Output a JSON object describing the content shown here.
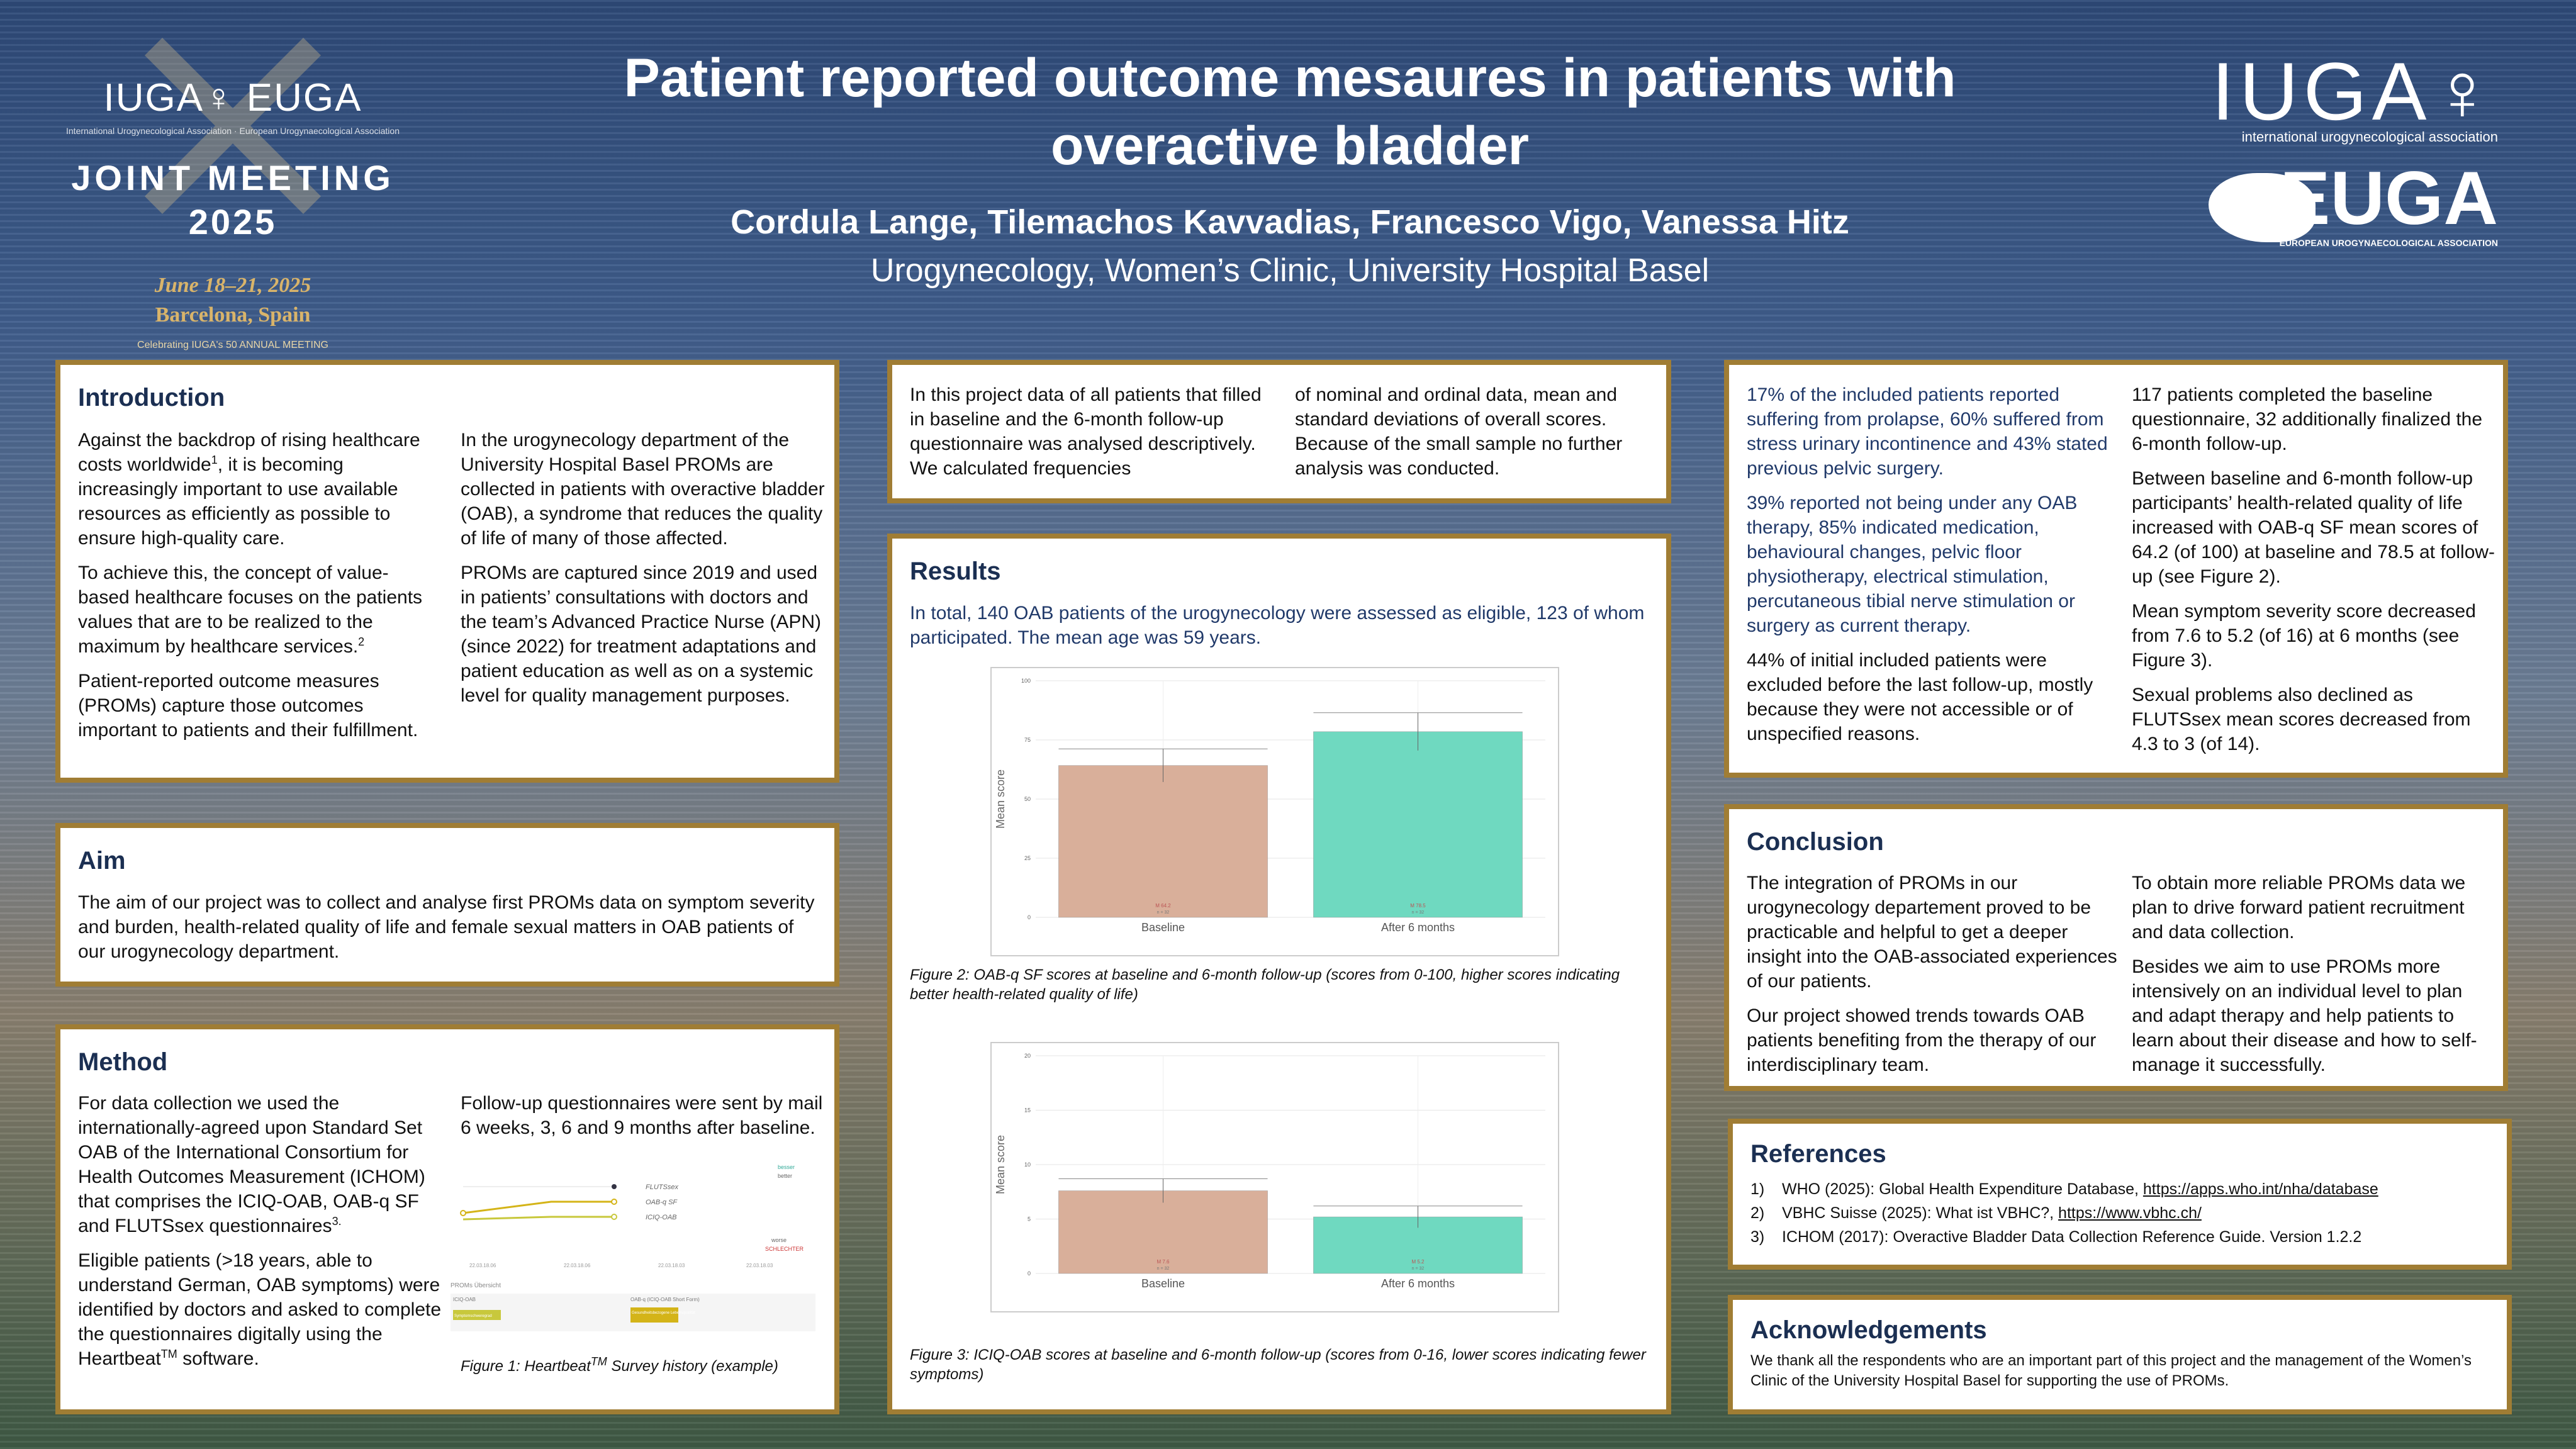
{
  "header": {
    "title": "Patient reported outcome mesaures in patients with overactive bladder",
    "authors": "Cordula Lange, Tilemachos Kavvadias, Francesco Vigo, Vanessa Hitz",
    "affiliation": "Urogynecology, Women’s Clinic, University Hospital Basel"
  },
  "logo_left": {
    "line1": "IUGA♀ EUGA",
    "line1_sub": "International Urogynecological Association · European Urogynaecological Association",
    "line2": "JOINT MEETING",
    "line3": "2025",
    "line4": "June 18–21, 2025",
    "line5": "Barcelona, Spain",
    "line6": "Celebrating IUGA's 50 ANNUAL MEETING"
  },
  "logo_right": {
    "iuga": "IUGA♀",
    "iuga_sub": "international urogynecological association",
    "euga": "EUGA",
    "euga_sub": "EUROPEAN UROGYNAECOLOGICAL ASSOCIATION"
  },
  "introduction": {
    "title": "Introduction",
    "p1a": "Against the backdrop of rising healthcare costs worldwide",
    "p1sup": "1",
    "p1b": ", it is becoming increasingly important to use available resources as efficiently as possible to ensure high-quality care.",
    "p2a": "To achieve this, the concept of value-based healthcare focuses on the patients values that are to be realized to the maximum by healthcare services.",
    "p2sup": "2",
    "p3": "Patient-reported outcome measures (PROMs) capture those outcomes important to patients and their fulfillment.",
    "p4": "In the urogynecology department of the University Hospital Basel PROMs are collected in patients with overactive bladder (OAB), a syndrome that reduces the quality of life of many of those affected.",
    "p5": "PROMs are captured since 2019 and used in patients’ consultations with doctors and the team’s Advanced Practice Nurse (APN) (since 2022) for treatment adaptations and patient education as well as on a systemic level for quality management purposes."
  },
  "aim": {
    "title": "Aim",
    "text": "The aim of our project was to collect and analyse first PROMs data on symptom severity and burden, health-related quality of life and female sexual matters  in OAB patients of our urogynecology department."
  },
  "method": {
    "title": "Method",
    "p1": "For data collection we used the internationally-agreed upon Standard Set OAB of the International Consortium for Health Outcomes Measurement (ICHOM) that comprises the ICIQ-OAB, OAB-q SF and FLUTSsex questionnaires",
    "p1sup": "3.",
    "p2a": "Eligible patients (>18 years, able to understand German, OAB symptoms) were identified by doctors and asked to complete the questionnaires digitally using the Heartbeat",
    "p2sup": "TM",
    "p2b": " software.",
    "p3": "Follow-up questionnaires were sent by mail 6 weeks, 3, 6 and 9 months after baseline.",
    "fig1_caption_a": "Figure 1: Heartbeat",
    "fig1_caption_sup": "TM",
    "fig1_caption_b": " Survey history (example)",
    "fig1": {
      "legend": [
        "FLUTSsex",
        "OAB-q SF",
        "ICIQ-OAB"
      ],
      "better": "besser",
      "better2": "better",
      "worse": "worse",
      "worse2": "SCHLECHTER",
      "dates": [
        "22.03.18.06",
        "22.03.18.06",
        "22.03.18.03",
        "22.03.18.03"
      ],
      "overview": "PROMs Übersicht",
      "col1": "ICIQ-OAB",
      "col2": "OAB-q (ICIQ-OAB Short Form)",
      "tag1": "Symptomschweregrad",
      "tag2": "Gesundheitsbezogene Lebensqualität"
    }
  },
  "descriptive": {
    "c1": "In this project data of all patients that filled in baseline and the 6-month follow-up questionnaire was analysed descriptively. We calculated frequencies",
    "c2": "of nominal and ordinal data, mean and standard deviations of overall scores. Because of the small sample no further analysis was conducted."
  },
  "results": {
    "title": "Results",
    "intro": "In total, 140 OAB patients of the urogynecology were assessed as eligible, 123 of whom participated. The mean age was 59 years.",
    "fig2_caption": "Figure 2: OAB-q SF scores at baseline and 6-month follow-up (scores from 0-100, higher scores indicating better health-related quality of life)",
    "fig3_caption": "Figure 3: ICIQ-OAB scores at baseline and 6-month follow-up (scores from 0-16, lower scores indicating fewer symptoms)"
  },
  "chart_data": [
    {
      "type": "bar",
      "categories": [
        "Baseline",
        "After 6 months"
      ],
      "values": [
        64.2,
        78.5
      ],
      "error": [
        7,
        8
      ],
      "ylabel": "Mean score",
      "ylim": [
        0,
        100
      ],
      "yticks": [
        "0",
        "25",
        "50",
        "75",
        "100"
      ],
      "bar_labels": [
        "M 64.2",
        "M 78.5"
      ],
      "n_labels": [
        "n = 32",
        "n = 32"
      ],
      "colors": [
        "#d9af9a",
        "#6fd9c0"
      ],
      "grid": "on"
    },
    {
      "type": "bar",
      "categories": [
        "Baseline",
        "After 6 months"
      ],
      "values": [
        7.6,
        5.2
      ],
      "error": [
        1.1,
        1.0
      ],
      "ylabel": "Mean score",
      "ylim": [
        0,
        20
      ],
      "yticks": [
        "0",
        "5",
        "10",
        "15",
        "20"
      ],
      "bar_labels": [
        "M 7.6",
        "M 5.2"
      ],
      "n_labels": [
        "n = 32",
        "n = 32"
      ],
      "colors": [
        "#d9af9a",
        "#6fd9c0"
      ],
      "grid": "on"
    }
  ],
  "results_right": {
    "b1": "17% of the included patients reported suffering from prolapse, 60% suffered from stress urinary incontinence and 43% stated previous pelvic surgery.",
    "b2": "39% reported not being under any OAB therapy, 85% indicated medication, behavioural changes, pelvic floor physiotherapy, electrical stimulation, percutaneous tibial nerve stimulation or surgery as current therapy.",
    "b3": "44% of initial included patients were excluded before the last follow-up, mostly because they were not accessible or of unspecified reasons.",
    "c1": "117 patients completed the baseline questionnaire, 32 additionally finalized the 6-month follow-up.",
    "c2": "Between baseline and 6-month follow-up participants’ health-related quality of life increased with OAB-q SF mean scores of 64.2 (of 100) at baseline and 78.5 at follow-up (see Figure 2).",
    "c3": "Mean symptom severity score decreased from 7.6 to 5.2 (of 16) at 6 months (see Figure 3).",
    "c4": "Sexual problems also declined as FLUTSsex mean scores decreased from 4.3 to 3 (of 14)."
  },
  "conclusion": {
    "title": "Conclusion",
    "p1": "The integration of PROMs in our urogynecology departement proved to be practicable and helpful to get a deeper insight into the OAB-associated experiences of our patients.",
    "p2": "Our project showed trends towards OAB patients benefiting from the therapy of our interdisciplinary team.",
    "p3": "To obtain more reliable PROMs data we plan to drive forward patient recruitment and data collection.",
    "p4": "Besides we aim to use PROMs more intensively on an individual level to plan and adapt therapy and help patients to learn about their disease and how to self-manage it successfully."
  },
  "references": {
    "title": "References",
    "items": [
      {
        "n": "1)",
        "text": "WHO (2025): Global Health Expenditure Database, ",
        "link": "https://apps.who.int/nha/database"
      },
      {
        "n": "2)",
        "text": "VBHC Suisse (2025): What ist VBHC?, ",
        "link": "https://www.vbhc.ch/"
      },
      {
        "n": "3)",
        "text": "ICHOM (2017): Overactive Bladder Data Collection Reference Guide. Version 1.2.2",
        "link": ""
      }
    ]
  },
  "ack": {
    "title": "Acknowledgements",
    "text": "We thank all the respondents who are an important part of this project and the management of the Women’s Clinic of the University Hospital Basel for supporting the use of PROMs."
  }
}
